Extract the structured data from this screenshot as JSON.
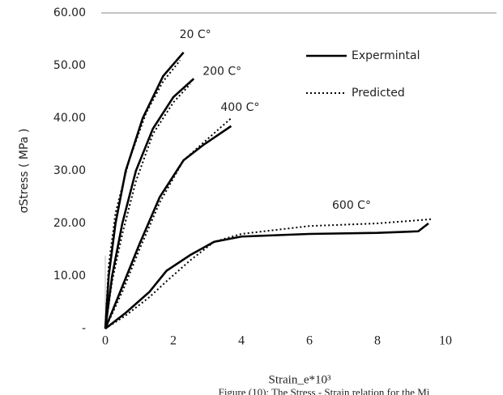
{
  "chart_data": {
    "type": "line",
    "xlabel": "Strain_e*10³",
    "ylabel": "σStress ( MPa )",
    "caption": "Figure (10): The Stress - Strain relation for the Mi",
    "xlim": [
      0,
      11.5
    ],
    "xticks": [
      0,
      2,
      4,
      6,
      8,
      10
    ],
    "ylim": [
      0,
      60
    ],
    "yticks": [
      {
        "value": 0,
        "label": "-"
      },
      {
        "value": 10,
        "label": "10.00"
      },
      {
        "value": 20,
        "label": "20.00"
      },
      {
        "value": 30,
        "label": "30.00"
      },
      {
        "value": 40,
        "label": "40.00"
      },
      {
        "value": 50,
        "label": "50.00"
      },
      {
        "value": 60,
        "label": "60.00"
      }
    ],
    "grid": false,
    "legend": "upper right",
    "series": [
      {
        "name": "Expermintal",
        "color": "#000000",
        "dash": "solid",
        "curves": [
          {
            "label": "20 C°",
            "x": [
              0,
              0.1,
              0.3,
              0.6,
              1.1,
              1.7,
              2.3
            ],
            "values": [
              0,
              10,
              20,
              30,
              40,
              48,
              52.5
            ]
          },
          {
            "label": "200 C°",
            "x": [
              0,
              0.2,
              0.5,
              0.9,
              1.4,
              2.0,
              2.6
            ],
            "values": [
              0,
              10,
              20,
              30,
              38,
              44,
              47.5
            ]
          },
          {
            "label": "400 C°",
            "x": [
              0,
              0.5,
              1.0,
              1.6,
              2.3,
              2.9,
              3.7
            ],
            "values": [
              0,
              8,
              16,
              25,
              32,
              35,
              38.5
            ]
          },
          {
            "label": "600 C°",
            "x": [
              0,
              0.6,
              1.3,
              1.8,
              2.5,
              3.2,
              4,
              6,
              8,
              9.2,
              9.5
            ],
            "values": [
              0,
              3,
              7,
              11,
              14,
              16.5,
              17.5,
              18,
              18.2,
              18.5,
              20
            ]
          }
        ]
      },
      {
        "name": "Predicted",
        "color": "#000000",
        "dash": "dotted",
        "curves": [
          {
            "x": [
              0,
              0.1,
              0.3,
              0.7,
              1.2,
              1.7,
              2.2
            ],
            "values": [
              0,
              12,
              22,
              32,
              41,
              47,
              51
            ]
          },
          {
            "x": [
              0,
              0.2,
              0.5,
              0.9,
              1.4,
              2.0,
              2.5
            ],
            "values": [
              0,
              9,
              18,
              28,
              37,
              43,
              46.5
            ]
          },
          {
            "x": [
              0,
              0.5,
              1.0,
              1.6,
              2.3,
              3.0,
              3.7
            ],
            "values": [
              0,
              7,
              15,
              24,
              32,
              36,
              40
            ]
          },
          {
            "x": [
              0,
              0.6,
              1.3,
              1.8,
              2.5,
              3.2,
              4,
              6,
              8,
              9.6
            ],
            "values": [
              0,
              2.5,
              6,
              9,
              13,
              16.5,
              18,
              19.5,
              20,
              20.8
            ]
          }
        ]
      }
    ]
  }
}
